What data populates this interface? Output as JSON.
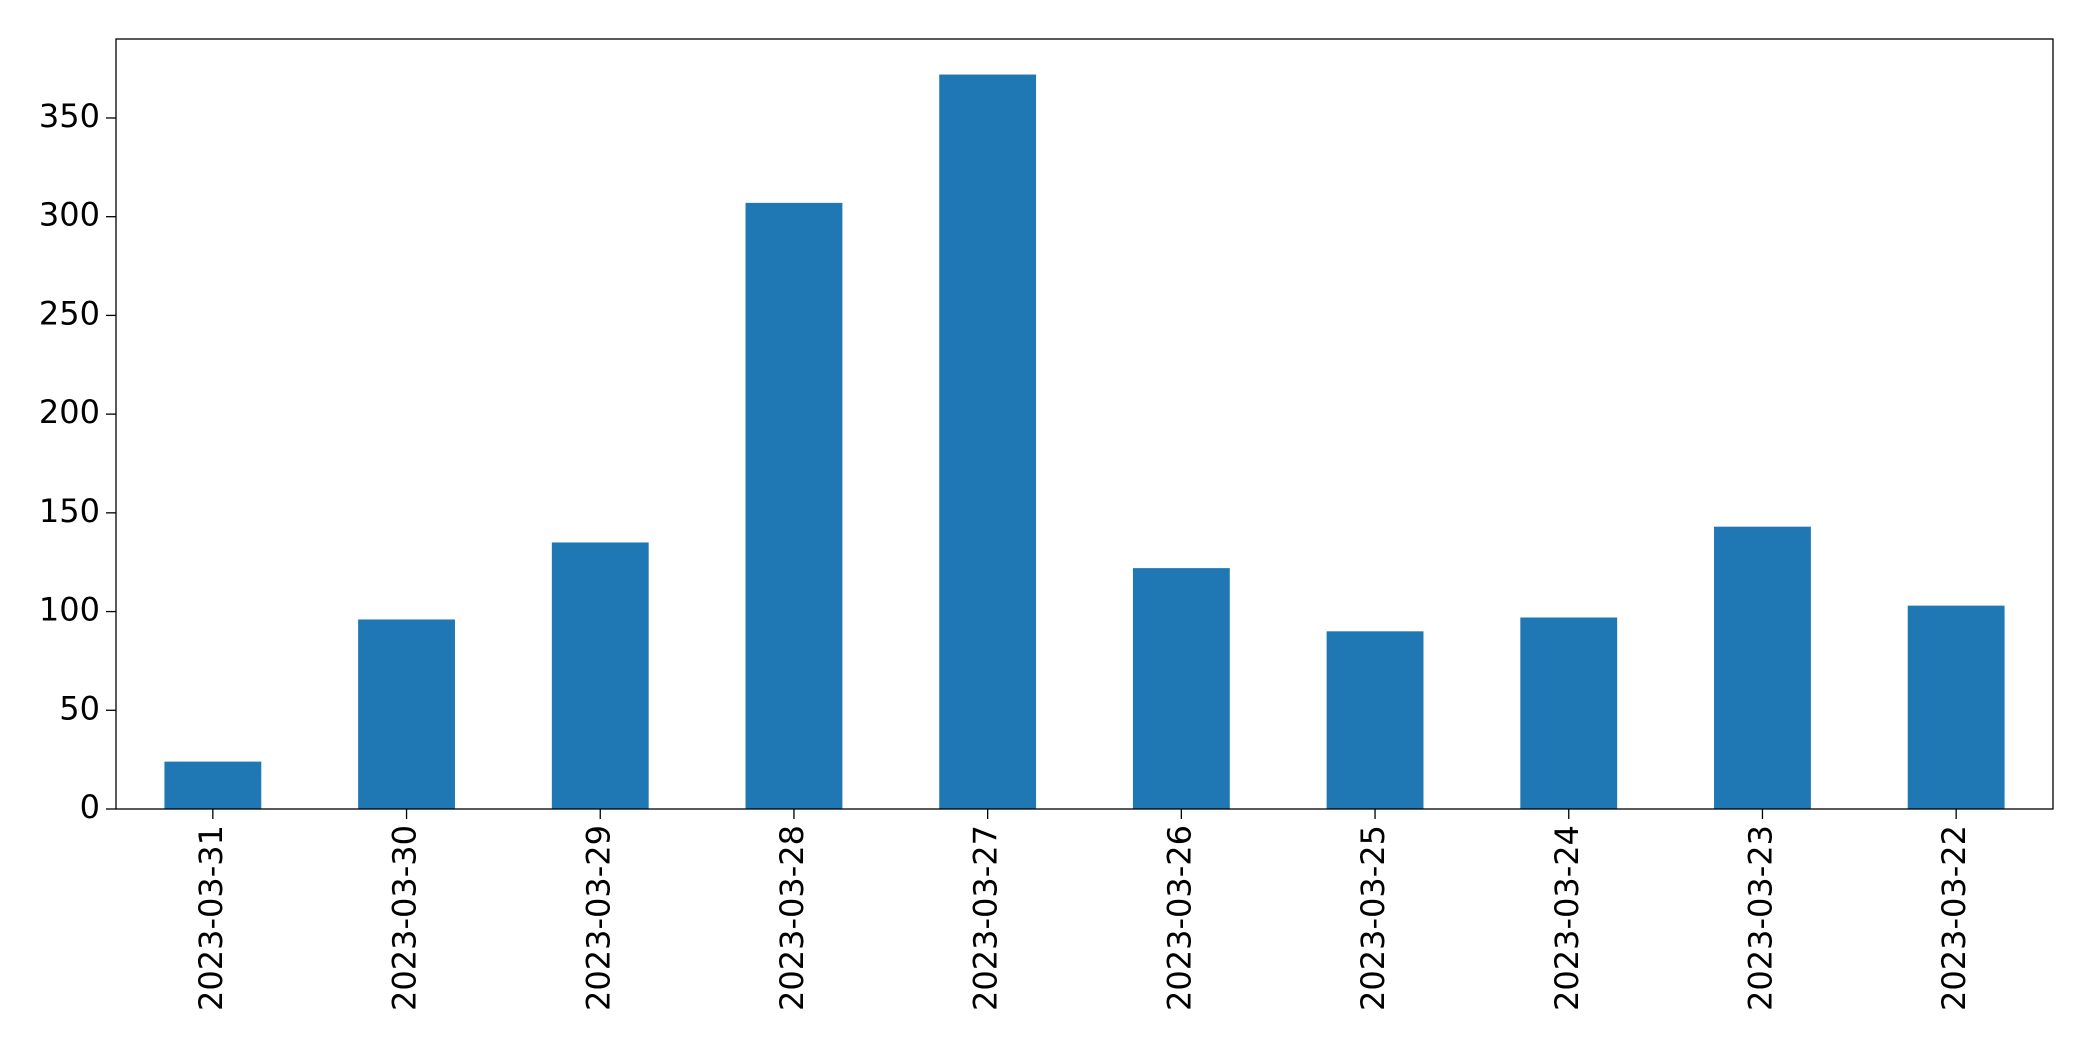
{
  "chart_data": {
    "type": "bar",
    "categories": [
      "2023-03-31",
      "2023-03-30",
      "2023-03-29",
      "2023-03-28",
      "2023-03-27",
      "2023-03-26",
      "2023-03-25",
      "2023-03-24",
      "2023-03-23",
      "2023-03-22"
    ],
    "values": [
      24,
      96,
      135,
      307,
      372,
      122,
      90,
      97,
      143,
      103
    ],
    "color": "#1f77b4",
    "ylim": [
      0,
      390
    ],
    "yticks": [
      0,
      50,
      100,
      150,
      200,
      250,
      300,
      350
    ],
    "grid": false
  }
}
